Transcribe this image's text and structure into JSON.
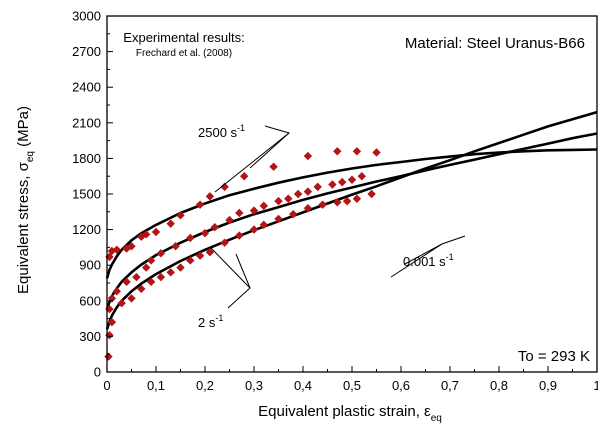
{
  "chart_data": {
    "type": "scatter",
    "title": "",
    "xlabel": {
      "text": "Equivalent plastic strain, ",
      "symbol": "ε",
      "sub": "eq"
    },
    "ylabel": {
      "text": "Equivalent stress, ",
      "symbol": "σ",
      "sub": "eq",
      "unit": "(MPa)"
    },
    "xlim": [
      0,
      1
    ],
    "ylim": [
      0,
      3000
    ],
    "x_ticks": [
      "0",
      "0,1",
      "0,2",
      "0,3",
      "0,4",
      "0,5",
      "0,6",
      "0,7",
      "0,8",
      "0,9",
      "1"
    ],
    "y_ticks": [
      "0",
      "300",
      "600",
      "900",
      "1200",
      "1500",
      "1800",
      "2100",
      "2400",
      "2700",
      "3000"
    ],
    "grid": false,
    "annotations": {
      "experimental_title": "Experimental results:",
      "experimental_ref": "Frechard et al. (2008)",
      "material": "Material: Steel Uranus-B66",
      "temperature": "To = 293 K",
      "rate_high": {
        "base": "2500 s",
        "exp": "-1"
      },
      "rate_mid": {
        "base": "2 s",
        "exp": "-1"
      },
      "rate_low": {
        "base": "0.001 s",
        "exp": "-1"
      }
    },
    "series": [
      {
        "kind": "model-curve",
        "rate": "2500",
        "x": [
          0,
          0.005,
          0.01,
          0.02,
          0.03,
          0.05,
          0.07,
          0.1,
          0.15,
          0.2,
          0.25,
          0.3,
          0.35,
          0.4,
          0.45,
          0.5,
          0.55,
          0.6,
          0.65,
          0.7,
          0.75,
          0.8,
          0.85,
          0.9,
          0.95,
          1.0
        ],
        "y": [
          790,
          860,
          905,
          975,
          1030,
          1110,
          1170,
          1240,
          1340,
          1420,
          1490,
          1545,
          1595,
          1640,
          1680,
          1715,
          1745,
          1770,
          1795,
          1815,
          1835,
          1850,
          1860,
          1868,
          1872,
          1875
        ]
      },
      {
        "kind": "model-curve",
        "rate": "2",
        "x": [
          0,
          0.005,
          0.01,
          0.02,
          0.03,
          0.05,
          0.07,
          0.1,
          0.15,
          0.2,
          0.25,
          0.3,
          0.35,
          0.4,
          0.45,
          0.5,
          0.55,
          0.6,
          0.65,
          0.7,
          0.75,
          0.8,
          0.85,
          0.9,
          0.95,
          1.0
        ],
        "y": [
          530,
          590,
          640,
          705,
          760,
          840,
          905,
          985,
          1090,
          1180,
          1260,
          1330,
          1390,
          1450,
          1505,
          1555,
          1605,
          1650,
          1700,
          1745,
          1790,
          1835,
          1880,
          1925,
          1970,
          2010
        ]
      },
      {
        "kind": "model-curve",
        "rate": "0.001",
        "x": [
          0,
          0.005,
          0.01,
          0.02,
          0.03,
          0.05,
          0.07,
          0.1,
          0.15,
          0.2,
          0.25,
          0.3,
          0.35,
          0.4,
          0.45,
          0.5,
          0.55,
          0.6,
          0.65,
          0.7,
          0.75,
          0.8,
          0.85,
          0.9,
          0.95,
          1.0
        ],
        "y": [
          360,
          425,
          475,
          545,
          600,
          680,
          745,
          825,
          935,
          1030,
          1115,
          1195,
          1270,
          1345,
          1420,
          1495,
          1565,
          1640,
          1715,
          1785,
          1860,
          1930,
          2000,
          2070,
          2130,
          2190
        ]
      },
      {
        "kind": "experiment",
        "rate": "2500",
        "x": [
          0.005,
          0.01,
          0.02,
          0.04,
          0.05,
          0.07,
          0.08,
          0.1,
          0.13,
          0.15,
          0.19,
          0.21,
          0.24,
          0.28,
          0.34,
          0.41,
          0.47,
          0.51,
          0.55
        ],
        "y": [
          970,
          1020,
          1030,
          1040,
          1060,
          1140,
          1160,
          1180,
          1250,
          1320,
          1410,
          1480,
          1560,
          1650,
          1730,
          1820,
          1860,
          1860,
          1850
        ]
      },
      {
        "kind": "experiment",
        "rate": "2",
        "x": [
          0.005,
          0.01,
          0.02,
          0.04,
          0.06,
          0.08,
          0.09,
          0.11,
          0.14,
          0.17,
          0.2,
          0.22,
          0.25,
          0.27,
          0.3,
          0.32,
          0.35,
          0.37,
          0.39,
          0.41,
          0.43,
          0.46,
          0.48,
          0.5,
          0.52
        ],
        "y": [
          530,
          620,
          680,
          760,
          800,
          880,
          940,
          1000,
          1060,
          1130,
          1170,
          1220,
          1280,
          1340,
          1360,
          1400,
          1440,
          1460,
          1500,
          1520,
          1560,
          1580,
          1600,
          1620,
          1650
        ]
      },
      {
        "kind": "experiment",
        "rate": "0.001",
        "x": [
          0.003,
          0.005,
          0.01,
          0.03,
          0.05,
          0.07,
          0.09,
          0.11,
          0.13,
          0.15,
          0.17,
          0.19,
          0.21,
          0.24,
          0.27,
          0.3,
          0.32,
          0.35,
          0.38,
          0.41,
          0.44,
          0.47,
          0.49,
          0.51,
          0.54
        ],
        "y": [
          130,
          310,
          420,
          580,
          620,
          700,
          760,
          800,
          840,
          880,
          940,
          980,
          1010,
          1090,
          1150,
          1200,
          1240,
          1290,
          1330,
          1380,
          1410,
          1430,
          1440,
          1460,
          1500
        ]
      }
    ],
    "colors": {
      "curve": "#000000",
      "marker": "#b41414"
    }
  }
}
